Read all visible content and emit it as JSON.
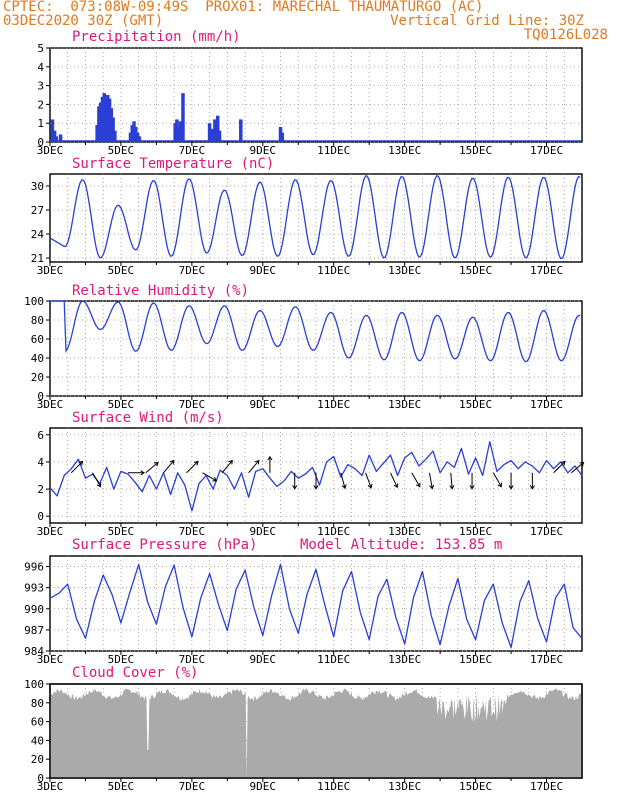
{
  "header": {
    "line1_left": "CPTEC:  073:08W-09:49S  PROX01: MARECHAL THAUMATURGO (AC)",
    "line2_left": "03DEC2020 30Z (GMT)",
    "line2_right": "Vertical Grid Line: 30Z",
    "line3_right": "TQ0126L028",
    "color": "#e07a1f"
  },
  "colors": {
    "title": "#e0187a",
    "line": "#2a3fd6",
    "bar": "#2a3fd6",
    "cloud": "#aaaaaa",
    "grid": "#999999"
  },
  "x_axis": {
    "ticks": [
      "3DEC",
      "5DEC",
      "7DEC",
      "9DEC",
      "11DEC",
      "13DEC",
      "15DEC",
      "17DEC"
    ],
    "day_range": [
      0,
      15
    ]
  },
  "chart_data": [
    {
      "type": "bar",
      "key": "precip",
      "title": "Precipitation (mm/h)",
      "ylim": [
        0,
        5
      ],
      "yticks": [
        0,
        1,
        2,
        3,
        4,
        5
      ],
      "bars": [
        [
          0.02,
          1.2
        ],
        [
          0.08,
          0.6
        ],
        [
          0.13,
          0.3
        ],
        [
          0.25,
          0.4
        ],
        [
          1.28,
          0.9
        ],
        [
          1.33,
          1.9
        ],
        [
          1.38,
          2.1
        ],
        [
          1.43,
          2.4
        ],
        [
          1.48,
          2.6
        ],
        [
          1.53,
          2.2
        ],
        [
          1.58,
          2.5
        ],
        [
          1.63,
          2.3
        ],
        [
          1.68,
          1.8
        ],
        [
          1.73,
          1.3
        ],
        [
          1.78,
          0.6
        ],
        [
          2.22,
          0.5
        ],
        [
          2.27,
          0.9
        ],
        [
          2.32,
          1.1
        ],
        [
          2.37,
          0.8
        ],
        [
          2.42,
          0.5
        ],
        [
          2.47,
          0.3
        ],
        [
          3.48,
          1.0
        ],
        [
          3.53,
          1.2
        ],
        [
          3.58,
          0.8
        ],
        [
          3.63,
          1.1
        ],
        [
          3.7,
          2.6
        ],
        [
          4.45,
          1.0
        ],
        [
          4.52,
          0.7
        ],
        [
          4.6,
          1.2
        ],
        [
          4.68,
          1.4
        ],
        [
          4.73,
          0.6
        ],
        [
          5.33,
          1.2
        ],
        [
          6.45,
          0.8
        ],
        [
          6.5,
          0.5
        ]
      ]
    },
    {
      "type": "line",
      "key": "temp",
      "title": "Surface Temperature (nC)",
      "ylim": [
        20.5,
        31.5
      ],
      "yticks": [
        21,
        24,
        27,
        30
      ],
      "minima": [
        22.4,
        21.0,
        22.0,
        21.2,
        21.6,
        21.3,
        21.2,
        21.4,
        21.2,
        21.0,
        21.1,
        21.0,
        21.1,
        21.0,
        20.9,
        21.0
      ],
      "maxima": [
        30.8,
        27.6,
        30.7,
        30.9,
        29.5,
        30.5,
        30.8,
        30.7,
        31.3,
        31.2,
        31.3,
        31.0,
        31.1,
        31.1,
        31.2
      ]
    },
    {
      "type": "line",
      "key": "rh",
      "title": "Relative Humidity (%)",
      "ylim": [
        0,
        100
      ],
      "yticks": [
        0,
        20,
        40,
        60,
        80,
        100
      ],
      "minima": [
        47,
        70,
        47,
        48,
        55,
        48,
        52,
        48,
        40,
        38,
        37,
        39,
        37,
        36,
        37
      ],
      "maxima": [
        100,
        99,
        98,
        95,
        95,
        90,
        94,
        88,
        85,
        88,
        85,
        83,
        88,
        90,
        85,
        45
      ]
    },
    {
      "type": "line",
      "key": "wind",
      "title": "Surface Wind (m/s)",
      "ylim": [
        -0.5,
        6.5
      ],
      "yticks": [
        0,
        2,
        4,
        6
      ],
      "values": [
        2.1,
        1.5,
        3.0,
        3.5,
        4.2,
        2.8,
        3.1,
        2.4,
        3.6,
        2.0,
        3.3,
        3.1,
        2.5,
        1.8,
        3.0,
        2.0,
        3.2,
        1.6,
        3.2,
        2.3,
        0.4,
        2.4,
        3.0,
        2.0,
        3.4,
        3.0,
        2.0,
        3.2,
        1.4,
        3.3,
        3.5,
        2.8,
        2.2,
        2.6,
        3.3,
        2.8,
        3.1,
        3.6,
        2.3,
        4.0,
        4.4,
        2.9,
        3.8,
        3.5,
        3.0,
        4.5,
        3.3,
        3.9,
        4.5,
        3.0,
        4.3,
        4.7,
        3.7,
        4.2,
        4.8,
        3.2,
        4.0,
        3.6,
        5.0,
        3.1,
        4.3,
        3.0,
        5.5,
        3.3,
        3.8,
        4.1,
        3.5,
        4.0,
        3.7,
        3.2,
        4.1,
        3.5,
        4.0,
        3.2,
        3.7,
        3.0
      ],
      "arrows": [
        [
          0.6,
          45
        ],
        [
          1.2,
          -60
        ],
        [
          2.2,
          0
        ],
        [
          2.7,
          40
        ],
        [
          3.2,
          50
        ],
        [
          3.85,
          45
        ],
        [
          4.3,
          -30
        ],
        [
          4.85,
          50
        ],
        [
          5.6,
          50
        ],
        [
          6.2,
          90
        ],
        [
          6.9,
          -90
        ],
        [
          7.5,
          -90
        ],
        [
          8.2,
          -75
        ],
        [
          8.9,
          -70
        ],
        [
          9.6,
          -65
        ],
        [
          10.2,
          -60
        ],
        [
          10.7,
          -80
        ],
        [
          11.3,
          -85
        ],
        [
          11.9,
          -90
        ],
        [
          12.5,
          -60
        ],
        [
          13.0,
          -90
        ],
        [
          13.6,
          -90
        ],
        [
          14.2,
          45
        ],
        [
          14.7,
          40
        ]
      ]
    },
    {
      "type": "line",
      "key": "press",
      "title": "Surface Pressure (hPa)",
      "subtitle": "Model Altitude: 153.85 m",
      "ylim": [
        984,
        997.5
      ],
      "yticks": [
        984,
        987,
        990,
        993,
        996
      ],
      "values": [
        991.5,
        992.2,
        993.5,
        988.5,
        985.8,
        991.0,
        994.8,
        992.0,
        988.0,
        992.3,
        996.3,
        991.0,
        987.8,
        993.1,
        996.2,
        990.2,
        986.0,
        991.5,
        995.0,
        990.6,
        986.9,
        992.8,
        995.5,
        990.2,
        986.2,
        991.9,
        996.3,
        990.0,
        986.5,
        992.1,
        995.6,
        990.5,
        986.0,
        992.5,
        995.3,
        989.5,
        985.6,
        991.8,
        994.2,
        988.8,
        985.0,
        991.6,
        995.3,
        989.0,
        984.9,
        990.4,
        994.3,
        988.5,
        985.6,
        991.2,
        993.5,
        988.0,
        984.5,
        991.0,
        994.0,
        988.6,
        985.3,
        991.5,
        993.5,
        987.3,
        985.8
      ]
    },
    {
      "type": "area",
      "key": "cloud",
      "title": "Cloud Cover (%)",
      "ylim": [
        0,
        100
      ],
      "yticks": [
        0,
        20,
        40,
        60,
        80,
        100
      ]
    }
  ]
}
